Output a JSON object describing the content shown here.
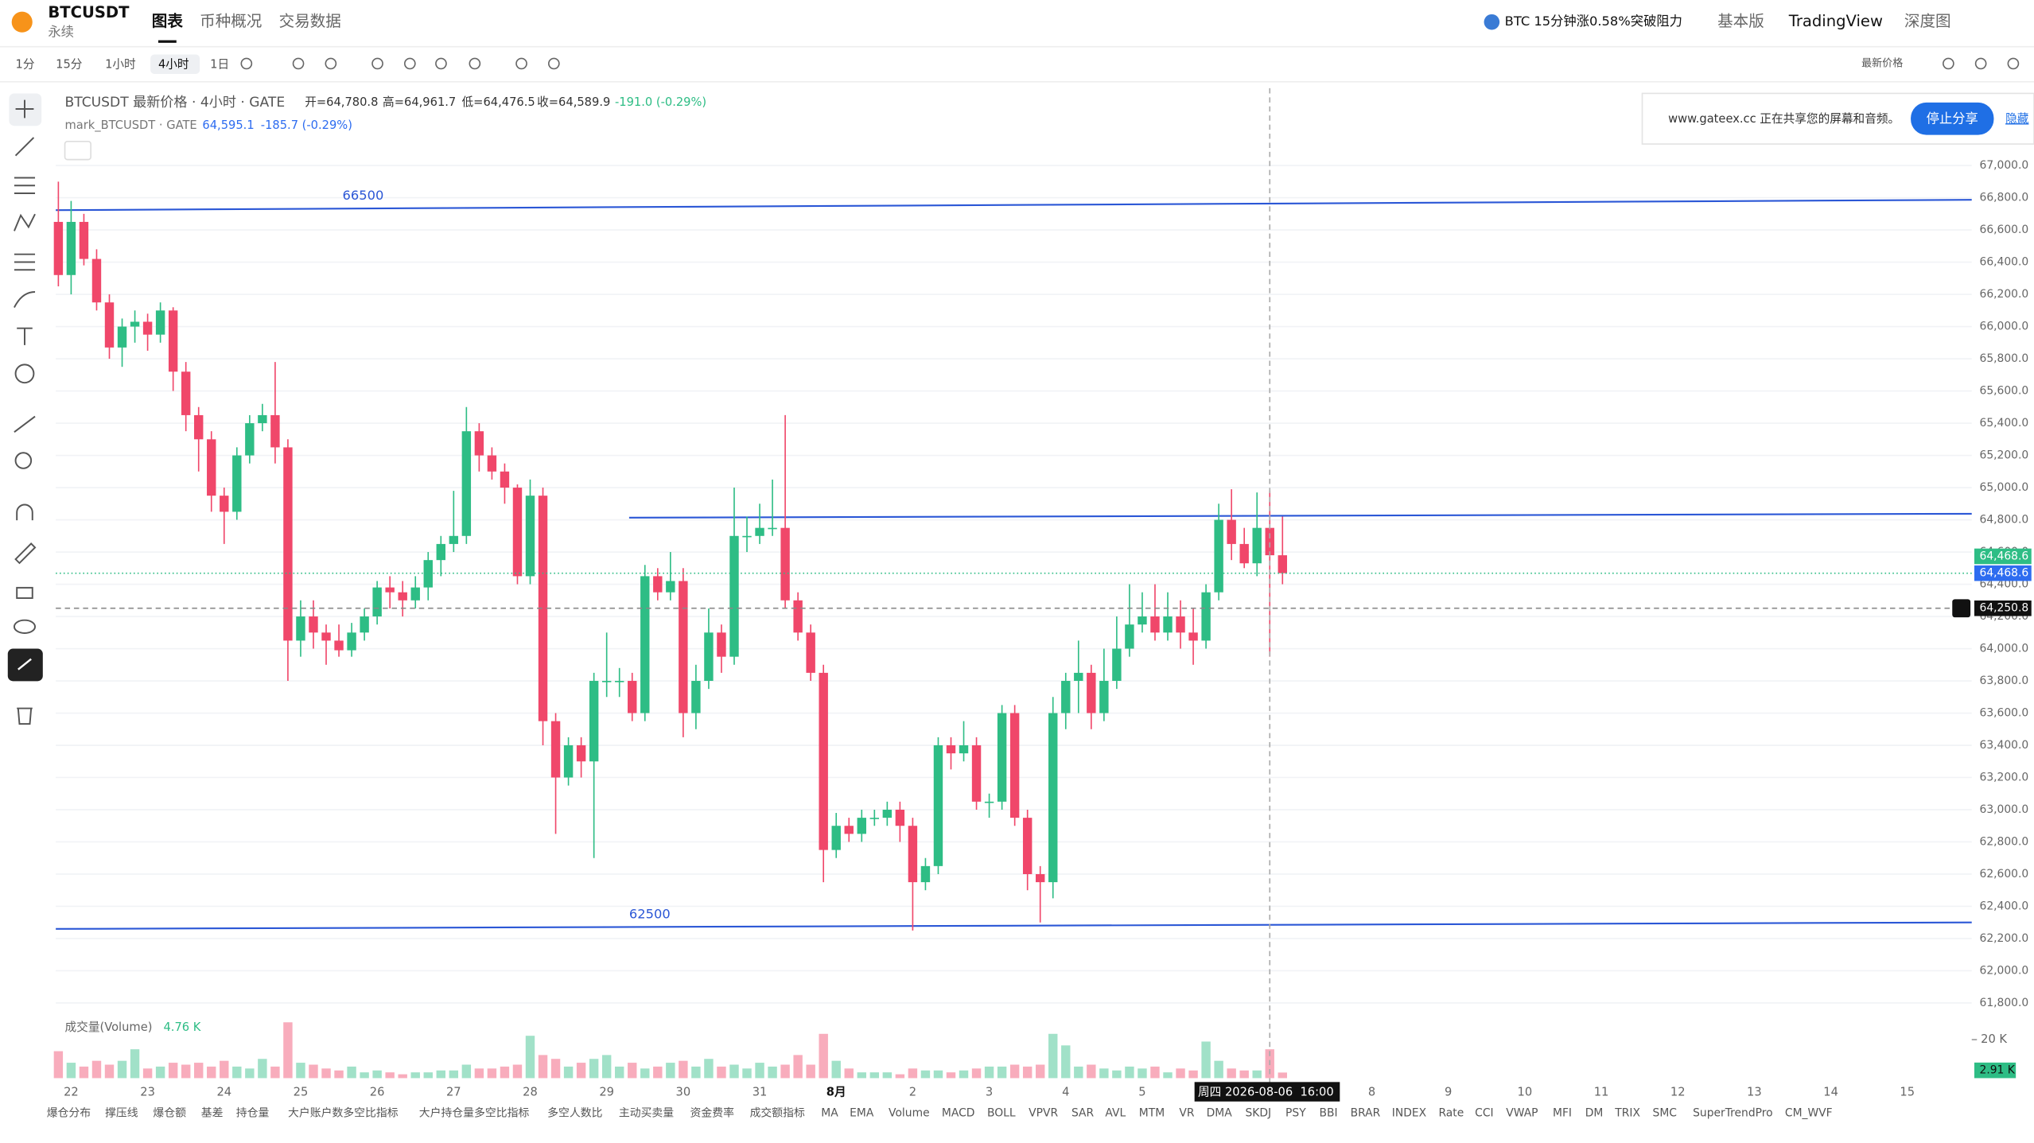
{
  "header": {
    "symbol": "BTCUSDT",
    "contract": "永续",
    "tabs": [
      "图表",
      "币种概况",
      "交易数据"
    ],
    "news": "BTC 15分钟涨0.58%突破阻力",
    "modes": [
      "基本版",
      "TradingView",
      "深度图"
    ]
  },
  "toolbar": {
    "intervals": [
      "1分",
      "15分",
      "1小时",
      "4小时",
      "1日"
    ],
    "price_type": "最新价格"
  },
  "share_banner": {
    "text": "www.gateex.cc 正在共享您的屏幕和音频。",
    "button": "停止分享",
    "hide": "隐藏"
  },
  "indicator_tabs": [
    "爆仓分布",
    "撑压线",
    "爆仓额",
    "基差",
    "持仓量",
    "大户账户数多空比指标",
    "大户持仓量多空比指标",
    "多空人数比",
    "主动买卖量",
    "资金费率",
    "成交额指标",
    "MA",
    "EMA",
    "Volume",
    "MACD",
    "BOLL",
    "VPVR",
    "SAR",
    "AVL",
    "MTM",
    "VR",
    "DMA",
    "SKDJ",
    "PSY",
    "BBI",
    "BRAR",
    "INDEX",
    "Rate",
    "CCI",
    "VWAP",
    "MFI",
    "DM",
    "TRIX",
    "SMC",
    "SuperTrendPro",
    "CM_WVF"
  ],
  "chart_data": {
    "type": "candlestick",
    "title": "BTCUSDT 最新价格 · 4小时 · GATE",
    "ohlc_legend": [
      "开=64,780.8",
      "高=64,961.7",
      "低=64,476.5",
      "收=64,589.9",
      "-191.0 (-0.29%)"
    ],
    "mark_line": {
      "name": "mark_BTCUSDT · GATE",
      "value": "64,595.1",
      "change": "-185.7 (-0.29%)"
    },
    "up_color": "#2ebd85",
    "down_color": "#f0476a",
    "categories": [
      null,
      "22",
      null,
      null,
      null,
      null,
      null,
      "23",
      null,
      null,
      null,
      null,
      null,
      "24",
      null,
      null,
      null,
      null,
      null,
      "25",
      null,
      null,
      null,
      null,
      null,
      "26",
      null,
      null,
      null,
      null,
      null,
      "27",
      null,
      null,
      null,
      null,
      null,
      "28",
      null,
      null,
      null,
      null,
      null,
      "29",
      null,
      null,
      null,
      null,
      null,
      "30",
      null,
      null,
      null,
      null,
      null,
      "31",
      null,
      null,
      null,
      null,
      null,
      "8月",
      null,
      null,
      null,
      null,
      null,
      "2",
      null,
      null,
      null,
      null,
      null,
      "3",
      null,
      null,
      null,
      null,
      null,
      "4",
      null,
      null,
      null,
      null,
      null,
      "5",
      null,
      null,
      null,
      null,
      null,
      null,
      null,
      null,
      null,
      null,
      null,
      null,
      null,
      null,
      null,
      null,
      null,
      "8",
      null,
      null,
      null,
      null,
      null,
      "9",
      null,
      null,
      null,
      null,
      null,
      "10",
      null,
      null,
      null,
      null,
      null,
      "11",
      null,
      null,
      null,
      null,
      null,
      "12",
      null,
      null,
      null,
      null,
      null,
      "13",
      null,
      null,
      null,
      null,
      null,
      "14",
      null,
      null,
      null,
      null,
      null,
      "15",
      null,
      null,
      null,
      null
    ],
    "open": [
      66650,
      66320,
      66650,
      66420,
      66150,
      65870,
      66000,
      66030,
      65950,
      66100,
      65720,
      65450,
      65300,
      64950,
      64850,
      65200,
      65400,
      65450,
      65250,
      64050,
      64200,
      64100,
      64050,
      63990,
      64100,
      64200,
      64380,
      64350,
      64300,
      64380,
      64550,
      64650,
      64700,
      65350,
      65200,
      65100,
      65000,
      64450,
      64950,
      63550,
      63200,
      63400,
      63300,
      63800,
      63800,
      63800,
      63600,
      64450,
      64350,
      64420,
      63600,
      63800,
      64100,
      63950,
      64700,
      64700,
      64750,
      64750,
      64300,
      64100,
      63850,
      62750,
      62900,
      62850,
      62950,
      62950,
      63000,
      62900,
      62550,
      62650,
      63400,
      63350,
      63400,
      63050,
      63050,
      63600,
      62950,
      62600,
      62550,
      63600,
      63800,
      63850,
      63600,
      63800,
      64000,
      64150,
      64200,
      64100,
      64200,
      64100,
      64050,
      64350,
      64800,
      64650,
      64530,
      64750,
      64580,
      null,
      null,
      null,
      null,
      null,
      null,
      null,
      null,
      null,
      null,
      null,
      null,
      null,
      null,
      null,
      null,
      null,
      null,
      null,
      null,
      null,
      null,
      null,
      null,
      null,
      null,
      null,
      null,
      null,
      null,
      null,
      null,
      null,
      null,
      null,
      null,
      null,
      null,
      null,
      null,
      null,
      null,
      null,
      null,
      null,
      null,
      null,
      null,
      null,
      null,
      null,
      null,
      null
    ],
    "high": [
      66900,
      66780,
      66700,
      66480,
      66200,
      66050,
      66100,
      66080,
      66150,
      66120,
      65780,
      65500,
      65350,
      65000,
      65250,
      65450,
      65520,
      65780,
      65300,
      64300,
      64300,
      64150,
      64150,
      64160,
      64250,
      64420,
      64450,
      64420,
      64450,
      64600,
      64700,
      64980,
      65500,
      65400,
      65250,
      65150,
      65020,
      65050,
      65000,
      63600,
      63450,
      63450,
      63850,
      64100,
      63880,
      63850,
      64520,
      64500,
      64600,
      64500,
      63900,
      64250,
      64150,
      65000,
      64820,
      64900,
      65050,
      65450,
      64350,
      64150,
      63900,
      62980,
      62950,
      63000,
      63000,
      63050,
      63050,
      62950,
      62700,
      63450,
      63450,
      63550,
      63450,
      63100,
      63650,
      63650,
      63000,
      62650,
      63700,
      63850,
      64050,
      63900,
      64000,
      64200,
      64400,
      64350,
      64400,
      64350,
      64300,
      64250,
      64400,
      64900,
      64990,
      64750,
      64970,
      64980,
      64820,
      null,
      null,
      null,
      null,
      null,
      null,
      null,
      null,
      null,
      null,
      null,
      null,
      null,
      null,
      null,
      null,
      null,
      null,
      null,
      null,
      null,
      null,
      null,
      null,
      null,
      null,
      null,
      null,
      null,
      null,
      null,
      null,
      null,
      null,
      null,
      null,
      null,
      null,
      null,
      null,
      null,
      null,
      null,
      null,
      null,
      null,
      null,
      null,
      null,
      null,
      null,
      null,
      null
    ],
    "low": [
      66250,
      66200,
      66380,
      66100,
      65800,
      65750,
      65900,
      65850,
      65900,
      65600,
      65350,
      65100,
      64850,
      64650,
      64800,
      65150,
      65350,
      65150,
      63800,
      63950,
      64000,
      63900,
      63950,
      63950,
      64050,
      64150,
      64250,
      64200,
      64250,
      64300,
      64450,
      64600,
      64650,
      65100,
      65050,
      64900,
      64400,
      64400,
      63400,
      62850,
      63150,
      63200,
      62700,
      63700,
      63700,
      63550,
      63550,
      64300,
      64300,
      63450,
      63500,
      63750,
      63850,
      63900,
      64600,
      64650,
      64700,
      64250,
      64050,
      63800,
      62550,
      62700,
      62800,
      62800,
      62900,
      62900,
      62800,
      62250,
      62500,
      62600,
      63250,
      63300,
      63000,
      62950,
      63000,
      62900,
      62500,
      62300,
      62450,
      63500,
      63600,
      63500,
      63550,
      63750,
      63950,
      64100,
      64050,
      64050,
      64000,
      63900,
      64000,
      64300,
      64550,
      64500,
      64450,
      63950,
      64400,
      null,
      null,
      null,
      null,
      null,
      null,
      null,
      null,
      null,
      null,
      null,
      null,
      null,
      null,
      null,
      null,
      null,
      null,
      null,
      null,
      null,
      null,
      null,
      null,
      null,
      null,
      null,
      null,
      null,
      null,
      null,
      null,
      null,
      null,
      null,
      null,
      null,
      null,
      null,
      null,
      null,
      null,
      null,
      null,
      null,
      null,
      null,
      null,
      null,
      null,
      null,
      null,
      null
    ],
    "close": [
      66320,
      66650,
      66420,
      66150,
      65870,
      66000,
      66030,
      65950,
      66100,
      65720,
      65450,
      65300,
      64950,
      64850,
      65200,
      65400,
      65450,
      65250,
      64050,
      64200,
      64100,
      64050,
      63990,
      64100,
      64200,
      64380,
      64350,
      64300,
      64380,
      64550,
      64650,
      64700,
      65350,
      65200,
      65100,
      65000,
      64450,
      64950,
      63550,
      63200,
      63400,
      63300,
      63800,
      63800,
      63800,
      63600,
      64450,
      64350,
      64420,
      63600,
      63800,
      64100,
      63950,
      64700,
      64700,
      64750,
      64750,
      64300,
      64100,
      63850,
      62750,
      62900,
      62850,
      62950,
      62950,
      63000,
      62900,
      62550,
      62650,
      63400,
      63350,
      63400,
      63050,
      63050,
      63600,
      62950,
      62600,
      62550,
      63600,
      63800,
      63850,
      63600,
      63800,
      64000,
      64150,
      64200,
      64100,
      64200,
      64100,
      64050,
      64350,
      64800,
      64650,
      64530,
      64750,
      64580,
      64468.6,
      null,
      null,
      null,
      null,
      null,
      null,
      null,
      null,
      null,
      null,
      null,
      null,
      null,
      null,
      null,
      null,
      null,
      null,
      null,
      null,
      null,
      null,
      null,
      null,
      null,
      null,
      null,
      null,
      null,
      null,
      null,
      null,
      null,
      null,
      null,
      null,
      null,
      null,
      null,
      null,
      null,
      null,
      null,
      null,
      null,
      null,
      null,
      null,
      null,
      null,
      null,
      null,
      null
    ],
    "last_price_label": "64,468.6",
    "ylim": [
      61720,
      67480
    ],
    "yticks": [
      {
        "value": 67000,
        "label": "67,000.0"
      },
      {
        "value": 66800,
        "label": "66,800.0"
      },
      {
        "value": 66600,
        "label": "66,600.0"
      },
      {
        "value": 66400,
        "label": "66,400.0"
      },
      {
        "value": 66200,
        "label": "66,200.0"
      },
      {
        "value": 66000,
        "label": "66,000.0"
      },
      {
        "value": 65800,
        "label": "65,800.0"
      },
      {
        "value": 65600,
        "label": "65,600.0"
      },
      {
        "value": 65400,
        "label": "65,400.0"
      },
      {
        "value": 65200,
        "label": "65,200.0"
      },
      {
        "value": 65000,
        "label": "65,000.0"
      },
      {
        "value": 64800,
        "label": "64,800.0"
      },
      {
        "value": 64600,
        "label": "64,600.0"
      },
      {
        "value": 64400,
        "label": "64,400.0"
      },
      {
        "value": 64200,
        "label": "64,200.0"
      },
      {
        "value": 64000,
        "label": "64,000.0"
      },
      {
        "value": 63800,
        "label": "63,800.0"
      },
      {
        "value": 63600,
        "label": "63,600.0"
      },
      {
        "value": 63400,
        "label": "63,400.0"
      },
      {
        "value": 63200,
        "label": "63,200.0"
      },
      {
        "value": 63000,
        "label": "63,000.0"
      },
      {
        "value": 62800,
        "label": "62,800.0"
      },
      {
        "value": 62600,
        "label": "62,600.0"
      },
      {
        "value": 62400,
        "label": "62,400.0"
      },
      {
        "value": 62200,
        "label": "62,200.0"
      },
      {
        "value": 62000,
        "label": "62,000.0"
      },
      {
        "value": 61800,
        "label": "61,800.0"
      }
    ],
    "grid": true,
    "annotations": [
      "66500",
      "62500"
    ],
    "crosshair": {
      "value": 64250.8,
      "label": "64,250.8",
      "time": "周四 2026-08-06  16:00"
    },
    "volume": {
      "title": "成交量(Volume)",
      "current": "4.76 K",
      "ylim": [
        0,
        31
      ],
      "yticks": [
        {
          "value": 20,
          "label": "20 K"
        }
      ],
      "values": [
        14,
        8,
        6,
        9,
        7,
        9,
        15,
        5,
        6,
        8,
        7,
        8,
        6,
        9,
        6,
        5,
        10,
        6,
        29,
        8,
        7,
        5,
        4,
        6,
        3,
        4,
        3,
        2,
        3,
        3,
        4,
        4,
        7,
        5,
        5,
        6,
        7,
        22,
        12,
        10,
        6,
        8,
        10,
        12,
        6,
        8,
        5,
        6,
        8,
        9,
        6,
        10,
        6,
        7,
        5,
        8,
        6,
        7,
        12,
        7,
        23,
        9,
        5,
        3,
        3,
        3,
        2,
        5,
        4,
        4,
        3,
        4,
        5,
        6,
        6,
        7,
        6,
        7,
        23,
        17,
        6,
        7,
        5,
        4,
        6,
        5,
        6,
        3,
        5,
        4,
        19,
        9,
        5,
        4,
        4,
        15,
        2.91,
        null,
        null,
        null,
        null,
        null,
        null,
        null,
        null,
        null,
        null,
        null,
        null,
        null,
        null,
        null,
        null,
        null,
        null,
        null,
        null,
        null,
        null,
        null,
        null,
        null,
        null,
        null,
        null,
        null,
        null,
        null,
        null,
        null,
        null,
        null,
        null,
        null,
        null,
        null,
        null,
        null,
        null,
        null,
        null,
        null,
        null,
        null,
        null,
        null,
        null,
        null,
        null
      ],
      "last_label": "2.91 K"
    }
  }
}
